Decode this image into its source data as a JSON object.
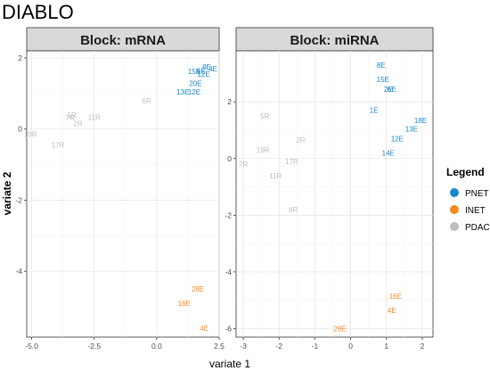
{
  "chart_data": {
    "type": "scatter",
    "title": "DIABLO",
    "xlabel": "variate 1",
    "ylabel": "variate 2",
    "legend": {
      "title": "Legend",
      "position": "right",
      "entries": [
        {
          "name": "PNET",
          "color": "#1a87c9"
        },
        {
          "name": "INET",
          "color": "#f5891e"
        },
        {
          "name": "PDAC",
          "color": "#bdbdbd"
        }
      ]
    },
    "grid": true,
    "panels": [
      {
        "strip": "Block: mRNA",
        "xlim": [
          -5.2,
          2.5
        ],
        "ylim": [
          -5.85,
          2.2
        ],
        "xticks": [
          -5.0,
          -2.5,
          0.0,
          2.5
        ],
        "xtick_labels": [
          "-5.0",
          "-2.5",
          "0.0",
          "2.5"
        ],
        "yticks": [
          2,
          0,
          -2,
          -4
        ],
        "ytick_labels": [
          "2",
          "0",
          "-2",
          "-4"
        ],
        "points": [
          {
            "label": "8E",
            "x": 2.0,
            "y": 1.75,
            "group": "PNET"
          },
          {
            "label": "4E",
            "x": 2.25,
            "y": 1.7,
            "group": "PNET"
          },
          {
            "label": "15E",
            "x": 1.5,
            "y": 1.62,
            "group": "PNET"
          },
          {
            "label": "6E",
            "x": 1.78,
            "y": 1.63,
            "group": "PNET"
          },
          {
            "label": "12E",
            "x": 1.88,
            "y": 1.55,
            "group": "PNET"
          },
          {
            "label": "20E",
            "x": 1.55,
            "y": 1.28,
            "group": "PNET"
          },
          {
            "label": "13E",
            "x": 1.05,
            "y": 1.05,
            "group": "PNET"
          },
          {
            "label": "12E",
            "x": 1.5,
            "y": 1.05,
            "group": "PNET"
          },
          {
            "label": "6R",
            "x": -0.4,
            "y": 0.8,
            "group": "PDAC"
          },
          {
            "label": "5R",
            "x": -3.4,
            "y": 0.4,
            "group": "PDAC"
          },
          {
            "label": "7R",
            "x": -3.45,
            "y": 0.32,
            "group": "PDAC"
          },
          {
            "label": "11R",
            "x": -2.5,
            "y": 0.33,
            "group": "PDAC"
          },
          {
            "label": "2R",
            "x": -3.15,
            "y": 0.15,
            "group": "PDAC"
          },
          {
            "label": "19R",
            "x": -5.05,
            "y": -0.15,
            "group": "PDAC"
          },
          {
            "label": "17R",
            "x": -3.95,
            "y": -0.45,
            "group": "PDAC"
          },
          {
            "label": "28E",
            "x": 1.65,
            "y": -4.5,
            "group": "INET"
          },
          {
            "label": "16E",
            "x": 1.1,
            "y": -4.9,
            "group": "INET"
          },
          {
            "label": "4E",
            "x": 1.9,
            "y": -5.6,
            "group": "INET"
          }
        ]
      },
      {
        "strip": "Block: miRNA",
        "xlim": [
          -3.2,
          2.3
        ],
        "ylim": [
          -6.3,
          3.8
        ],
        "xticks": [
          -3,
          -2,
          -1,
          0,
          1,
          2
        ],
        "xtick_labels": [
          "-3",
          "-2",
          "-1",
          "0",
          "1",
          "2"
        ],
        "yticks": [
          2,
          0,
          -2,
          -4,
          -6
        ],
        "ytick_labels": [
          "2",
          "0",
          "-2",
          "-4",
          "-6"
        ],
        "points": [
          {
            "label": "8E",
            "x": 0.85,
            "y": 3.3,
            "group": "PNET"
          },
          {
            "label": "15E",
            "x": 0.9,
            "y": 2.8,
            "group": "PNET"
          },
          {
            "label": "2E",
            "x": 1.05,
            "y": 2.45,
            "group": "PNET"
          },
          {
            "label": "6E",
            "x": 1.15,
            "y": 2.45,
            "group": "PNET"
          },
          {
            "label": "1E",
            "x": 0.65,
            "y": 1.7,
            "group": "PNET"
          },
          {
            "label": "18E",
            "x": 1.95,
            "y": 1.35,
            "group": "PNET"
          },
          {
            "label": "13E",
            "x": 1.7,
            "y": 1.05,
            "group": "PNET"
          },
          {
            "label": "12E",
            "x": 1.3,
            "y": 0.7,
            "group": "PNET"
          },
          {
            "label": "14E",
            "x": 1.05,
            "y": 0.2,
            "group": "PNET"
          },
          {
            "label": "5R",
            "x": -2.4,
            "y": 1.5,
            "group": "PDAC"
          },
          {
            "label": "2R",
            "x": -1.4,
            "y": 0.65,
            "group": "PDAC"
          },
          {
            "label": "19R",
            "x": -2.45,
            "y": 0.3,
            "group": "PDAC"
          },
          {
            "label": "7R",
            "x": -3.0,
            "y": -0.2,
            "group": "PDAC"
          },
          {
            "label": "17R",
            "x": -1.65,
            "y": -0.1,
            "group": "PDAC"
          },
          {
            "label": "11R",
            "x": -2.1,
            "y": -0.6,
            "group": "PDAC"
          },
          {
            "label": "6R",
            "x": -1.6,
            "y": -1.8,
            "group": "PDAC"
          },
          {
            "label": "16E",
            "x": 1.25,
            "y": -4.85,
            "group": "INET"
          },
          {
            "label": "4E",
            "x": 1.15,
            "y": -5.35,
            "group": "INET"
          },
          {
            "label": "28E",
            "x": -0.3,
            "y": -6.0,
            "group": "INET"
          }
        ]
      }
    ]
  }
}
